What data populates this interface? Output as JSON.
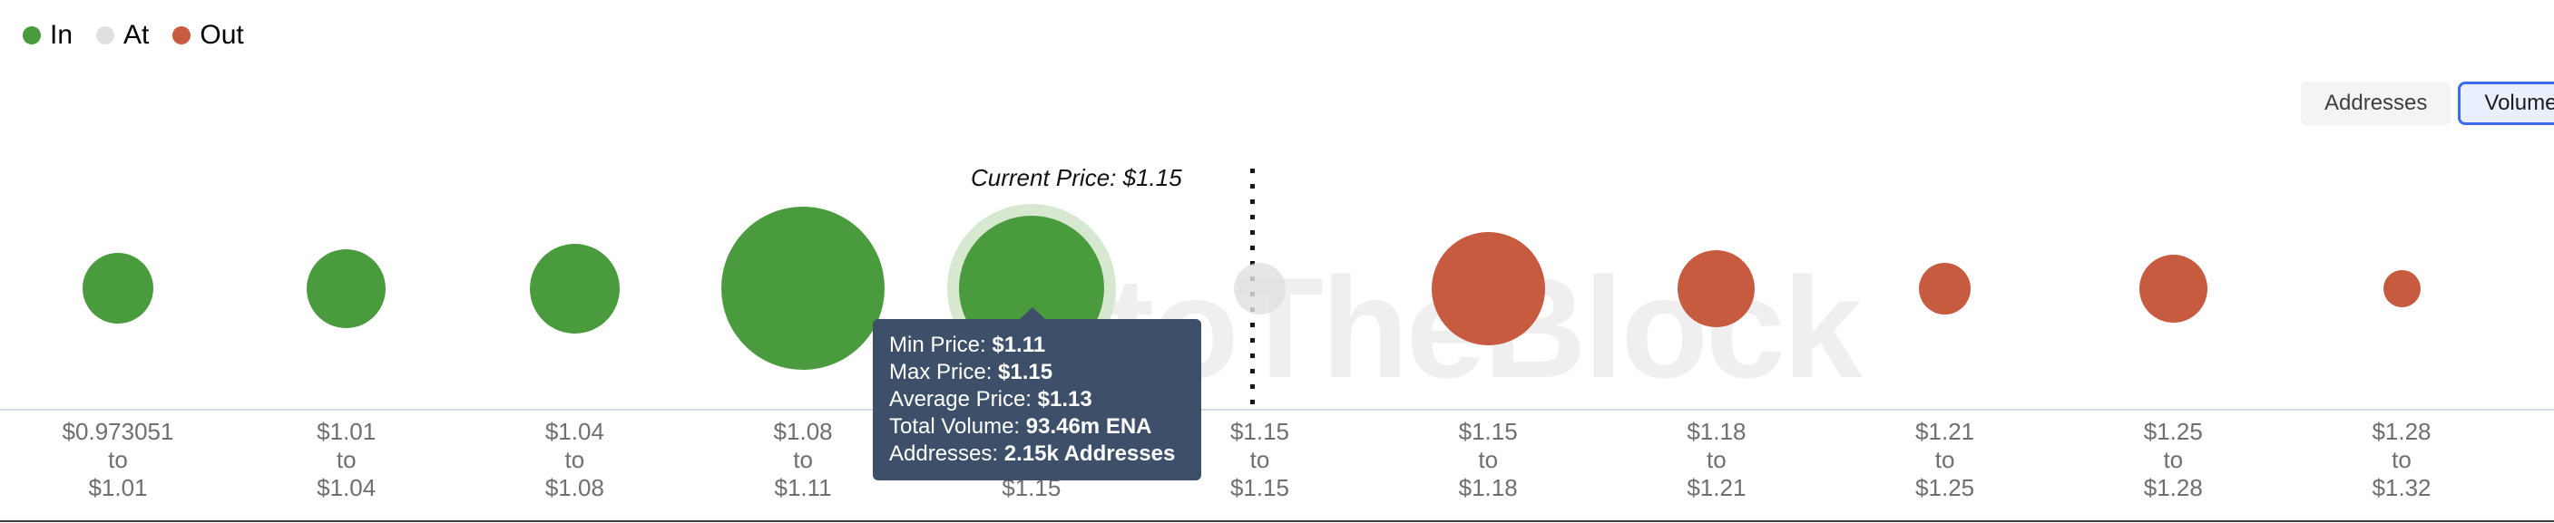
{
  "legend": {
    "items": [
      {
        "label": "In",
        "color": "#4a9b3e",
        "status": "in"
      },
      {
        "label": "At",
        "color": "#e0e0e0",
        "status": "at"
      },
      {
        "label": "Out",
        "color": "#c65b40",
        "status": "out"
      }
    ]
  },
  "view_toggle": {
    "options": [
      {
        "label": "Addresses",
        "selected": false
      },
      {
        "label": "Volume",
        "selected": true
      }
    ]
  },
  "annotation": {
    "current_price_label": "Current Price: $1.15"
  },
  "watermark_text": "IntoTheBlock",
  "tooltip": {
    "rows": [
      {
        "label": "Min Price: ",
        "value": "$1.11"
      },
      {
        "label": "Max Price: ",
        "value": "$1.15"
      },
      {
        "label": "Average Price: ",
        "value": "$1.13"
      },
      {
        "label": "Total Volume: ",
        "value": "93.46m ENA"
      },
      {
        "label": "Addresses: ",
        "value": "2.15k Addresses"
      }
    ]
  },
  "chart_data": {
    "type": "bubble",
    "x_axis_label_separator": "to",
    "current_price": "$1.15",
    "colors": {
      "in": "#4a9b3e",
      "at": "#e0e0e0",
      "out": "#c65b40"
    },
    "bins": [
      {
        "from": "$0.973051",
        "to": "$1.01",
        "money_status": "in",
        "bubble_size_px": 78
      },
      {
        "from": "$1.01",
        "to": "$1.04",
        "money_status": "in",
        "bubble_size_px": 87
      },
      {
        "from": "$1.04",
        "to": "$1.08",
        "money_status": "in",
        "bubble_size_px": 99
      },
      {
        "from": "$1.08",
        "to": "$1.11",
        "money_status": "in",
        "bubble_size_px": 180
      },
      {
        "from": "$1.11",
        "to": "$1.15",
        "money_status": "in",
        "bubble_size_px": 160
      },
      {
        "from": "$1.15",
        "to": "$1.15",
        "money_status": "at",
        "bubble_size_px": 57
      },
      {
        "from": "$1.15",
        "to": "$1.18",
        "money_status": "out",
        "bubble_size_px": 125
      },
      {
        "from": "$1.18",
        "to": "$1.21",
        "money_status": "out",
        "bubble_size_px": 85
      },
      {
        "from": "$1.21",
        "to": "$1.25",
        "money_status": "out",
        "bubble_size_px": 57
      },
      {
        "from": "$1.25",
        "to": "$1.28",
        "money_status": "out",
        "bubble_size_px": 75
      },
      {
        "from": "$1.28",
        "to": "$1.32",
        "money_status": "out",
        "bubble_size_px": 41
      }
    ],
    "hovered_bin": {
      "index": 4,
      "min_price": "$1.11",
      "max_price": "$1.15",
      "average_price": "$1.13",
      "total_volume": "93.46m ENA",
      "addresses": "2.15k Addresses"
    }
  }
}
